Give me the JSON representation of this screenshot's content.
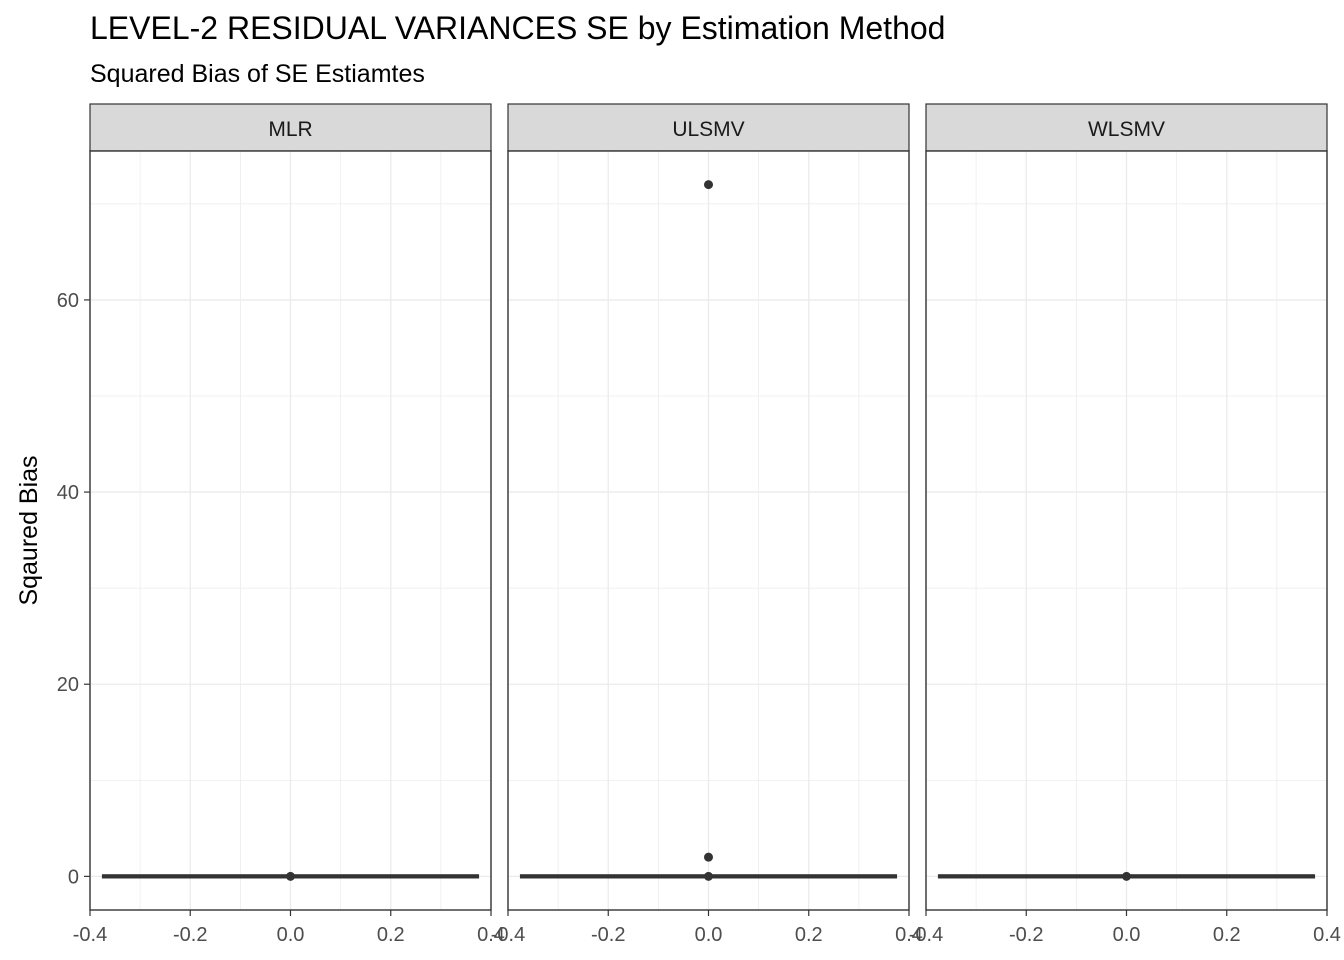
{
  "header": {
    "title": "LEVEL-2 RESIDUAL VARIANCES SE by Estimation Method",
    "subtitle": "Squared Bias of SE Estiamtes"
  },
  "chart_data": {
    "type": "boxplot",
    "title": "LEVEL-2 RESIDUAL VARIANCES SE by Estimation Method",
    "subtitle": "Squared Bias of SE Estiamtes",
    "xlabel": "",
    "ylabel": "Sqaured Bias",
    "xlim": [
      -0.4,
      0.4
    ],
    "ylim": [
      -3.5,
      75.5
    ],
    "x_ticks": [
      -0.4,
      -0.2,
      0.0,
      0.2,
      0.4
    ],
    "x_tick_labels": [
      "-0.4",
      "-0.2",
      "0.0",
      "0.2",
      "0.4"
    ],
    "y_ticks": [
      0,
      20,
      40,
      60
    ],
    "y_tick_labels": [
      "0",
      "20",
      "40",
      "60"
    ],
    "grid": true,
    "legend": "none",
    "colors": {
      "box": "#333333",
      "point": "#333333",
      "strip": "#d9d9d9",
      "grid": "#ebebeb",
      "border": "#333333"
    },
    "facets": [
      {
        "label": "MLR",
        "box": {
          "x0": -0.375,
          "x1": 0.375,
          "median": 0,
          "q1": 0,
          "q3": 0
        },
        "points": [
          {
            "x": 0,
            "y": 0
          }
        ]
      },
      {
        "label": "ULSMV",
        "box": {
          "x0": -0.375,
          "x1": 0.375,
          "median": 0,
          "q1": 0,
          "q3": 0
        },
        "points": [
          {
            "x": 0,
            "y": 72
          },
          {
            "x": 0,
            "y": 2
          },
          {
            "x": 0,
            "y": 0
          }
        ]
      },
      {
        "label": "WLSMV",
        "box": {
          "x0": -0.375,
          "x1": 0.375,
          "median": 0,
          "q1": 0,
          "q3": 0
        },
        "points": [
          {
            "x": 0,
            "y": 0
          }
        ]
      }
    ]
  }
}
